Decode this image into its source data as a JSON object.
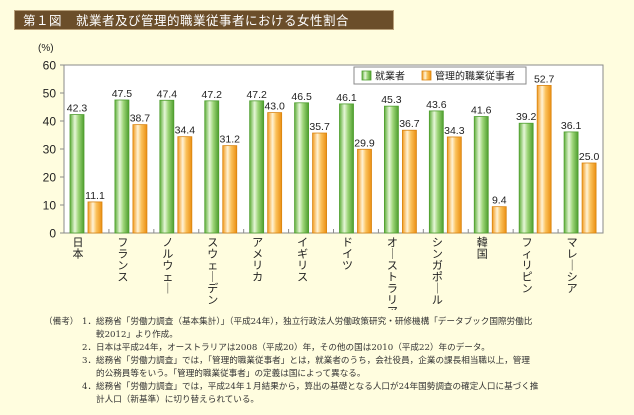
{
  "header": {
    "figure_label": "第１図",
    "title": "就業者及び管理的職業従事者における女性割合"
  },
  "chart_data": {
    "type": "bar",
    "title": "就業者及び管理的職業従事者における女性割合",
    "ylabel": "(%)",
    "xlabel": "",
    "ylim": [
      0,
      60
    ],
    "yticks": [
      0,
      10,
      20,
      30,
      40,
      50,
      60
    ],
    "grid": false,
    "legend_position": "top-right",
    "categories": [
      "日本",
      "フランス",
      "ノルウェー",
      "スウェーデン",
      "アメリカ",
      "イギリス",
      "ドイツ",
      "オーストラリア",
      "シンガポール",
      "韓国",
      "フィリピン",
      "マレーシア"
    ],
    "series": [
      {
        "name": "就業者",
        "color": "#6DBE45",
        "values": [
          42.3,
          47.5,
          47.4,
          47.2,
          47.2,
          46.5,
          46.1,
          45.3,
          43.6,
          41.6,
          39.2,
          36.1
        ],
        "labels": [
          "42.3",
          "47.5",
          "47.4",
          "47.2",
          "47.2",
          "46.5",
          "46.1",
          "45.3",
          "43.6",
          "41.6",
          "39.2",
          "36.1"
        ]
      },
      {
        "name": "管理的職業従事者",
        "color": "#F7A833",
        "values": [
          11.1,
          38.7,
          34.4,
          31.2,
          43.0,
          35.7,
          29.9,
          36.7,
          34.3,
          9.4,
          52.7,
          25.0
        ],
        "labels": [
          "11.1",
          "38.7",
          "34.4",
          "31.2",
          "43.0",
          "35.7",
          "29.9",
          "36.7",
          "34.3",
          "9.4",
          "52.7",
          "25.0"
        ]
      }
    ]
  },
  "notes": {
    "head": "（備考）",
    "items": [
      {
        "num": "1．",
        "lines": [
          "総務省「労働力調査（基本集計）」（平成24年），独立行政法人労働政策研究・研修機構「データブック国際労働比",
          "較2012」より作成。"
        ]
      },
      {
        "num": "2．",
        "lines": [
          "日本は平成24年，オーストラリアは2008（平成20）年，その他の国は2010（平成22）年のデータ。"
        ]
      },
      {
        "num": "3．",
        "lines": [
          "総務省「労働力調査」では，「管理的職業従事者」とは，就業者のうち，会社役員，企業の課長相当職以上，管理",
          "的公務員等をいう。「管理的職業従事者」の定義は国によって異なる。"
        ]
      },
      {
        "num": "4．",
        "lines": [
          "総務省「労働力調査」では，平成24年１月結果から，算出の基礎となる人口が24年国勢調査の確定人口に基づく推",
          "計人口（新基準）に切り替えられている。"
        ]
      }
    ]
  }
}
